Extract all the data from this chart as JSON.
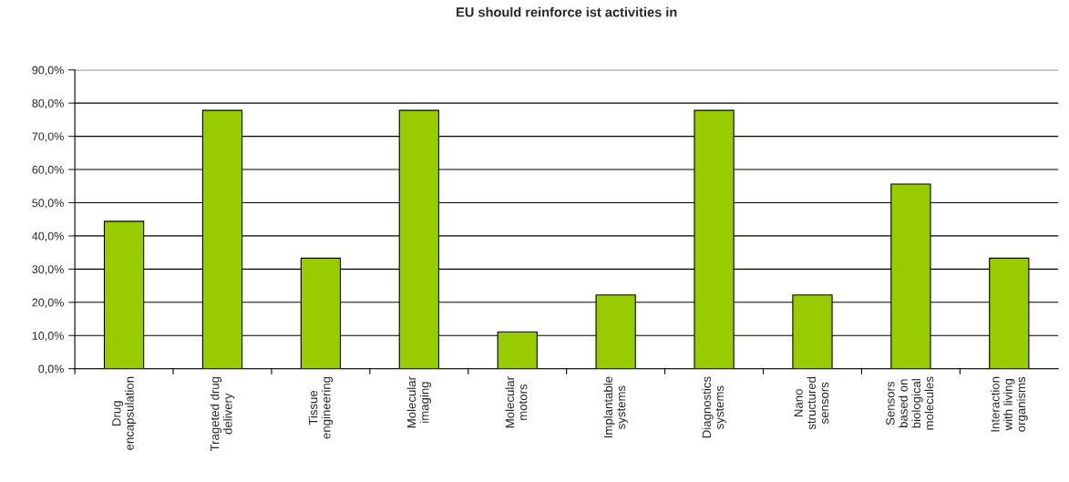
{
  "chart_data": {
    "type": "bar",
    "title": "EU should reinforce ist activities in",
    "categories": [
      "Drug\nencapsulation",
      "Trageted drug\ndelivery",
      "Tissue\nengineering",
      "Molecular\nimaging",
      "Molecular\nmotors",
      "Implantable\nsystems",
      "Diagnostics\nsystems",
      "Nano\nstructured\nsensors",
      "Sensors\nbased on\nbiological\nmolecules",
      "Interaction\nwith living\norganisms"
    ],
    "values": [
      44.4,
      77.8,
      33.3,
      77.8,
      11.1,
      22.2,
      77.8,
      22.2,
      55.6,
      33.3
    ],
    "color": "#99cc00",
    "ylim": [
      0,
      90
    ],
    "yticks": [
      {
        "value": 0,
        "label": "0,0%"
      },
      {
        "value": 10,
        "label": "10,0%"
      },
      {
        "value": 20,
        "label": "20,0%"
      },
      {
        "value": 30,
        "label": "30,0%"
      },
      {
        "value": 40,
        "label": "40,0%"
      },
      {
        "value": 50,
        "label": "50,0%"
      },
      {
        "value": 60,
        "label": "60,0%"
      },
      {
        "value": 70,
        "label": "70,0%"
      },
      {
        "value": 80,
        "label": "80,0%"
      },
      {
        "value": 90,
        "label": "90,0%"
      }
    ],
    "grid": "y"
  }
}
